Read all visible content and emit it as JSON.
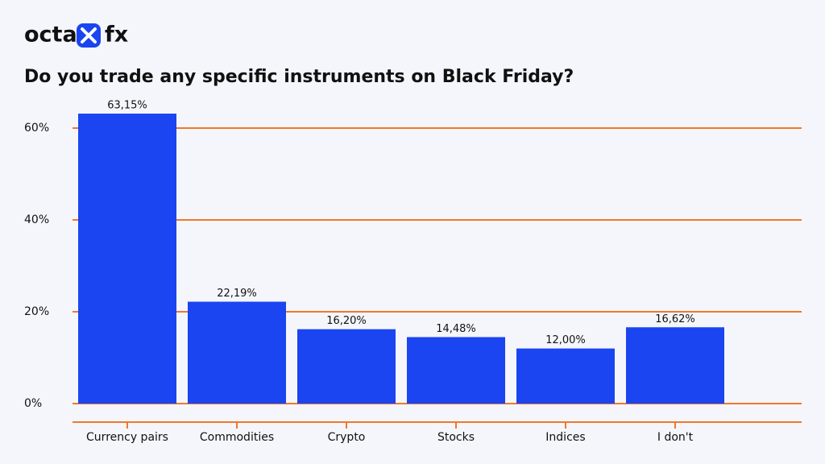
{
  "logo": [
    "octa",
    "fx"
  ],
  "chart_data": {
    "type": "bar",
    "title": "Do you trade any specific instruments on Black Friday?",
    "categories": [
      "Currency pairs",
      "Commodities",
      "Crypto",
      "Stocks",
      "Indices",
      "I don't"
    ],
    "values": [
      63.15,
      22.19,
      16.2,
      14.48,
      12.0,
      16.62
    ],
    "value_labels": [
      "63,15%",
      "22,19%",
      "16,20%",
      "14,48%",
      "12,00%",
      "16,62%"
    ],
    "color": "#1a45f0",
    "grid_color": "#f0782a",
    "ylim": [
      0,
      65
    ],
    "yticks": [
      {
        "value": 0,
        "label": "0%"
      },
      {
        "value": 20,
        "label": "20%"
      },
      {
        "value": 40,
        "label": "40%"
      },
      {
        "value": 60,
        "label": "60%"
      }
    ],
    "grid": true
  }
}
